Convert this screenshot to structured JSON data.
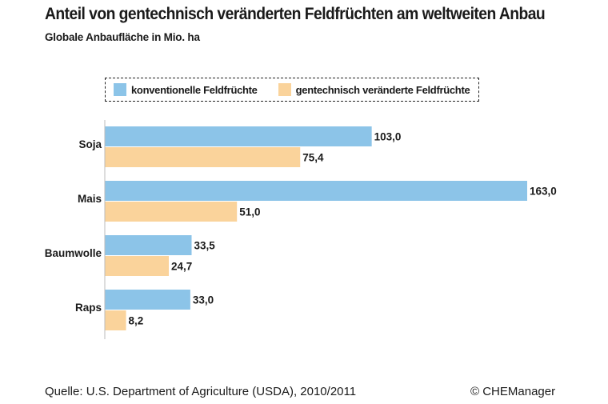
{
  "title": "Anteil von gentechnisch veränderten Feldfrüchten am weltweiten Anbau",
  "subtitle": "Globale Anbaufläche in Mio. ha",
  "legend": {
    "conventional": "konventionelle Feldfrüchte",
    "genetically_modified": "gentechnisch veränderte Feldfrüchte"
  },
  "colors": {
    "conventional": "#8cc4e8",
    "genetically_modified": "#fad39b"
  },
  "chart_data": {
    "type": "bar",
    "orientation": "horizontal",
    "title": "Anteil von gentechnisch veränderten Feldfrüchten am weltweiten Anbau",
    "subtitle": "Globale Anbaufläche in Mio. ha",
    "categories": [
      "Soja",
      "Mais",
      "Baumwolle",
      "Raps"
    ],
    "series": [
      {
        "name": "konventionelle Feldfrüchte",
        "values": [
          103.0,
          163.0,
          33.5,
          33.0
        ],
        "labels": [
          "103,0",
          "163,0",
          "33,5",
          "33,0"
        ]
      },
      {
        "name": "gentechnisch veränderte Feldfrüchte",
        "values": [
          75.4,
          51.0,
          24.7,
          8.2
        ],
        "labels": [
          "75,4",
          "51,0",
          "24,7",
          "8,2"
        ]
      }
    ],
    "xlim": [
      0,
      163.0
    ],
    "xlabel": "",
    "ylabel": "",
    "grid": false,
    "legend_position": "top"
  },
  "footer": {
    "source": "Quelle: U.S. Department of Agriculture (USDA), 2010/2011",
    "brand": "© CHEManager"
  }
}
